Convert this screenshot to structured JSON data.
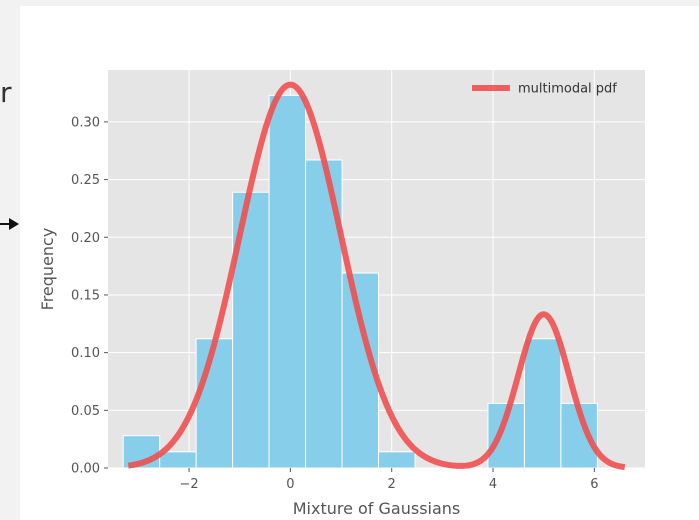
{
  "page": {
    "left_partial_text": "r",
    "arrow_icon": "right-arrow-icon"
  },
  "chart_data": {
    "type": "histogram",
    "xlabel": "Mixture of Gaussians",
    "ylabel": "Frequency",
    "xlim": [
      -3.6,
      7.0
    ],
    "ylim": [
      0,
      0.345
    ],
    "xticks": [
      -2,
      0,
      2,
      4,
      6
    ],
    "xtick_labels": [
      "−2",
      "0",
      "2",
      "4",
      "6"
    ],
    "yticks": [
      0.0,
      0.05,
      0.1,
      0.15,
      0.2,
      0.25,
      0.3
    ],
    "ytick_labels": [
      "0.00",
      "0.05",
      "0.10",
      "0.15",
      "0.20",
      "0.25",
      "0.30"
    ],
    "grid": true,
    "legend": {
      "placement": "top-right",
      "entries": [
        "multimodal pdf"
      ]
    },
    "histogram": {
      "bin_edges": [
        -3.3,
        -2.58,
        -1.86,
        -1.14,
        -0.42,
        0.3,
        1.02,
        1.74,
        2.46,
        3.18,
        3.9,
        4.62,
        5.34,
        6.06
      ],
      "values": [
        0.028,
        0.014,
        0.112,
        0.239,
        0.323,
        0.267,
        0.169,
        0.014,
        0.0,
        0.0,
        0.056,
        0.112,
        0.056
      ],
      "color": "#87ceeb"
    },
    "pdf_line": {
      "name": "multimodal pdf",
      "color": "#f05050",
      "components": [
        {
          "weight": 0.833,
          "mean": 0.0,
          "std": 1.0
        },
        {
          "weight": 0.167,
          "mean": 5.0,
          "std": 0.5
        }
      ],
      "x_range": [
        -3.2,
        6.6
      ]
    },
    "colors": {
      "plot_bg": "#e5e5e5",
      "grid": "#ffffff",
      "axis_text": "#555555"
    }
  }
}
